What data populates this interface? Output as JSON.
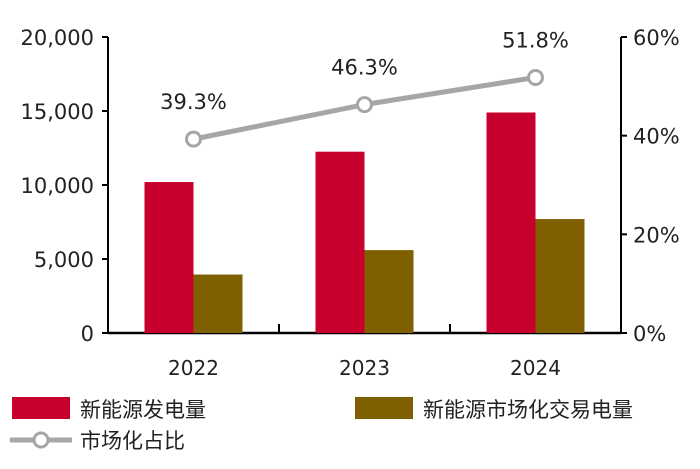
{
  "chart_data": {
    "type": "bar",
    "categories": [
      "2022",
      "2023",
      "2024"
    ],
    "series": [
      {
        "name": "新能源发电量",
        "type": "bar",
        "axis": "left",
        "color": "#C8002D",
        "values": [
          10200,
          12250,
          14900
        ]
      },
      {
        "name": "新能源市场化交易电量",
        "type": "bar",
        "axis": "left",
        "color": "#7F6000",
        "values": [
          3950,
          5600,
          7700
        ]
      },
      {
        "name": "市场化占比",
        "type": "line",
        "axis": "right",
        "color": "#A6A6A6",
        "values": [
          39.3,
          46.3,
          51.8
        ],
        "labels": [
          "39.3%",
          "46.3%",
          "51.8%"
        ]
      }
    ],
    "left_axis": {
      "ylim": [
        0,
        20000
      ],
      "ticks": [
        "0",
        "5,000",
        "10,000",
        "15,000",
        "20,000"
      ]
    },
    "right_axis": {
      "ylim": [
        0,
        60
      ],
      "ticks": [
        "0%",
        "20%",
        "40%",
        "60%"
      ]
    },
    "grid": false,
    "legend": "bottom"
  }
}
